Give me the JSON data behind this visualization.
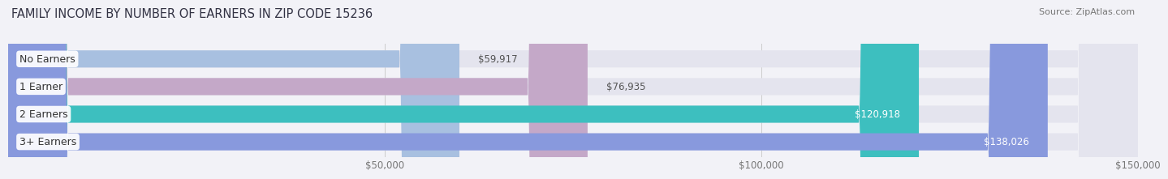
{
  "title": "FAMILY INCOME BY NUMBER OF EARNERS IN ZIP CODE 15236",
  "source": "Source: ZipAtlas.com",
  "categories": [
    "No Earners",
    "1 Earner",
    "2 Earners",
    "3+ Earners"
  ],
  "values": [
    59917,
    76935,
    120918,
    138026
  ],
  "bar_colors": [
    "#a8c0e0",
    "#c4a8c8",
    "#3dbfbf",
    "#8899dd"
  ],
  "bar_labels": [
    "$59,917",
    "$76,935",
    "$120,918",
    "$138,026"
  ],
  "xlim": [
    0,
    150000
  ],
  "xticks": [
    50000,
    100000,
    150000
  ],
  "xtick_labels": [
    "$50,000",
    "$100,000",
    "$150,000"
  ],
  "background_color": "#f2f2f7",
  "bar_bg_color": "#e4e4ee",
  "title_fontsize": 10.5,
  "source_fontsize": 8,
  "label_fontsize": 8.5,
  "category_fontsize": 9,
  "tick_fontsize": 8.5
}
